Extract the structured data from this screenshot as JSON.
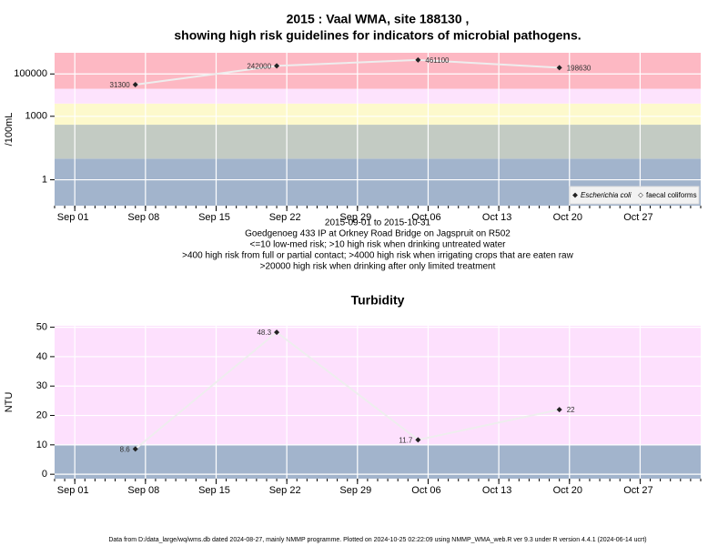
{
  "chart_data": [
    {
      "type": "line",
      "title": [
        "2015 : Vaal WMA, site 188130 ,",
        "showing high risk guidelines for indicators of microbial pathogens."
      ],
      "y_label": "/100mL",
      "x": [
        "Sep 07",
        "Sep 21",
        "Oct 05",
        "Oct 19"
      ],
      "xlim": [
        "Aug 30",
        "Nov 02"
      ],
      "xticks": [
        "Sep 01",
        "Sep 08",
        "Sep 15",
        "Sep 22",
        "Sep 29",
        "Oct 06",
        "Oct 13",
        "Oct 20",
        "Oct 27"
      ],
      "log_y": true,
      "ylim": [
        0.06,
        1000000
      ],
      "yticks": [
        1,
        1000,
        100000
      ],
      "grid": true,
      "bands": [
        {
          "from": 0.06,
          "to": 10,
          "color": "#a2b4cc"
        },
        {
          "from": 10,
          "to": 400,
          "color": "#c3cbc3"
        },
        {
          "from": 400,
          "to": 4000,
          "color": "#fdf9cc"
        },
        {
          "from": 4000,
          "to": 20000,
          "color": "#fde3fd"
        },
        {
          "from": 20000,
          "to": 1000000,
          "color": "#fdb8c3"
        }
      ],
      "series": [
        {
          "name": "Escherichia coli",
          "color": "#222222",
          "line_color": "#eeeeee",
          "values": [
            31300,
            242000,
            461100,
            198630
          ]
        },
        {
          "name": "faecal coliforms",
          "color": "#555555",
          "line_color": "#eeeeee",
          "values": [
            null,
            null,
            null,
            null
          ]
        }
      ],
      "legend": "bottom-right",
      "caption": [
        "2015-09-01 to 2015-10-31",
        "Goedgenoeg 433 IP at Orkney Road Bridge on Jagspruit on R502",
        "<=10 low-med risk; >10 high risk when drinking untreated water",
        ">400 high risk from full or partial contact; >4000 high risk when irrigating crops that are eaten raw",
        ">20000 high risk when drinking after only limited treatment"
      ]
    },
    {
      "type": "line",
      "title": [
        "Turbidity"
      ],
      "y_label": "NTU",
      "x": [
        "Sep 07",
        "Sep 21",
        "Oct 05",
        "Oct 19"
      ],
      "xlim": [
        "Aug 30",
        "Nov 02"
      ],
      "xticks": [
        "Sep 01",
        "Sep 08",
        "Sep 15",
        "Sep 22",
        "Sep 29",
        "Oct 06",
        "Oct 13",
        "Oct 20",
        "Oct 27"
      ],
      "log_y": false,
      "ylim": [
        -1.5,
        50.5
      ],
      "yticks": [
        0,
        10,
        20,
        30,
        40,
        50
      ],
      "grid": true,
      "bands": [
        {
          "from": -1.5,
          "to": 10,
          "color": "#a2b4cc"
        },
        {
          "from": 10,
          "to": 50.5,
          "color": "#fde0fd"
        }
      ],
      "series": [
        {
          "color": "#222222",
          "line_color": "#eeeeee",
          "values": [
            8.6,
            48.3,
            11.7,
            22
          ]
        }
      ]
    }
  ],
  "footer": "Data from D:/data_large/wq/wms.db dated 2024-08-27, mainly NMMP programme. Plotted on 2024-10-25 02:22:09 using NMMP_WMA_web.R ver 9.3 under R version 4.4.1 (2024-06-14 ucrt)"
}
